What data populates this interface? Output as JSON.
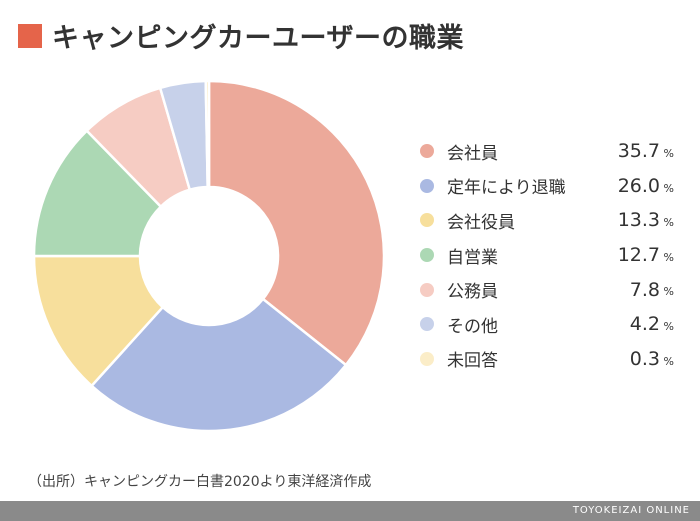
{
  "title": "キャンピングカーユーザーの職業",
  "colors": {
    "title_accent": "#e5644a",
    "footer_bg": "#8a8a8a"
  },
  "chart_data": {
    "type": "pie",
    "style": "donut",
    "categories": [
      "会社員",
      "定年により退職",
      "会社役員",
      "自営業",
      "公務員",
      "その他",
      "未回答"
    ],
    "values": [
      35.7,
      26.0,
      13.3,
      12.7,
      7.8,
      4.2,
      0.3
    ],
    "value_labels": [
      "35.7",
      "26.0",
      "13.3",
      "12.7",
      "7.8",
      "4.2",
      "0.3"
    ],
    "unit": "%",
    "colors": [
      "#eca99a",
      "#aab9e2",
      "#f7df9c",
      "#acd8b4",
      "#f6ccc3",
      "#c7d1ea",
      "#fbedc8"
    ],
    "legend_position": "right"
  },
  "source": "（出所）キャンピングカー白書2020より東洋経済作成",
  "footer": {
    "brand": "TOYOKEIZAI ONLINE"
  }
}
